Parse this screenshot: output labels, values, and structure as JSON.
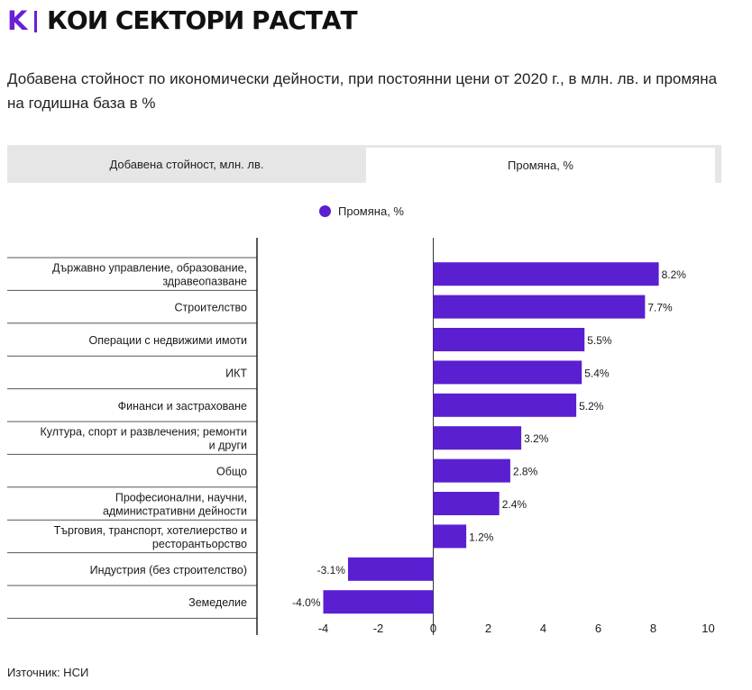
{
  "header": {
    "logo_letter": "K",
    "title": "КОИ СЕКТОРИ РАСТАТ"
  },
  "subtitle": "Добавена стойност по икономически дейности, при постоянни цени от 2020 г., в млн. лв. и промяна на годишна база в %",
  "tabs": [
    {
      "label": "Добавена стойност, млн. лв.",
      "active": false
    },
    {
      "label": "Промяна, %",
      "active": true
    }
  ],
  "legend": {
    "label": "Промяна, %",
    "color": "#5a1fd1"
  },
  "source": "Източник: НСИ",
  "chart_data": {
    "type": "bar",
    "orientation": "horizontal",
    "categories": [
      "Държавно управление, образование, здравеопазване",
      "Строителство",
      "Операции с недвижими имоти",
      "ИКТ",
      "Финанси и застраховане",
      "Култура, спорт и развлечения; ремонти и други",
      "Общо",
      "Професионални, научни, административни дейности",
      "Търговия, транспорт, хотелиерство и ресторантьорство",
      "Индустрия (без строителство)",
      "Земеделие"
    ],
    "category_lines": [
      [
        "Държавно управление, образование,",
        "здравеопазване"
      ],
      [
        "Строителство"
      ],
      [
        "Операции с недвижими имоти"
      ],
      [
        "ИКТ"
      ],
      [
        "Финанси и застраховане"
      ],
      [
        "Култура, спорт и развлечения; ремонти",
        "и други"
      ],
      [
        "Общо"
      ],
      [
        "Професионални, научни,",
        "административни дейности"
      ],
      [
        "Търговия, транспорт, хотелиерство и",
        "ресторантьорство"
      ],
      [
        "Индустрия (без строителство)"
      ],
      [
        "Земеделие"
      ]
    ],
    "series": [
      {
        "name": "Промяна, %",
        "color": "#5a1fd1",
        "values": [
          8.2,
          7.7,
          5.5,
          5.4,
          5.2,
          3.2,
          2.8,
          2.4,
          1.2,
          -3.1,
          -4.0
        ],
        "labels": [
          "8.2%",
          "7.7%",
          "5.5%",
          "5.4%",
          "5.2%",
          "3.2%",
          "2.8%",
          "2.4%",
          "1.2%",
          "-3.1%",
          "-4.0%"
        ]
      }
    ],
    "x_ticks": [
      -4,
      -2,
      0,
      2,
      4,
      6,
      8,
      10
    ],
    "xlim": [
      -4.4,
      10
    ],
    "grid": false,
    "legend_position": "top"
  }
}
